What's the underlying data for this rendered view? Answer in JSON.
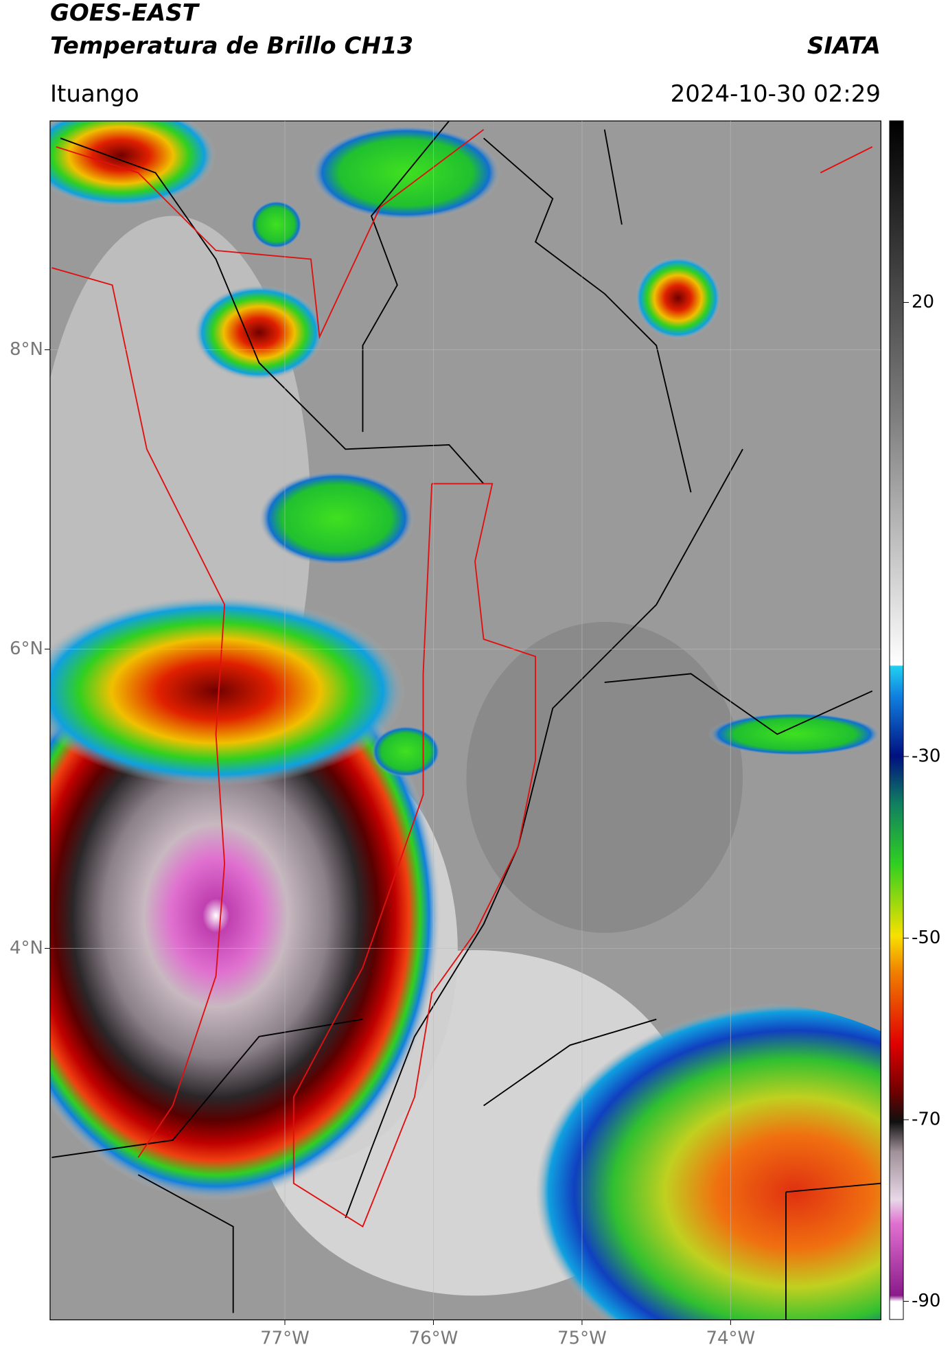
{
  "header": {
    "title": "GOES-EAST",
    "subtitle": "Temperatura de Brillo CH13",
    "source": "SIATA",
    "location": "Ituango",
    "datetime": "2024-10-30 02:29"
  },
  "map": {
    "xlim": [
      -78.58,
      -72.99
    ],
    "ylim": [
      1.52,
      9.53
    ],
    "xticks": [
      {
        "value": -77,
        "label": "77°W"
      },
      {
        "value": -76,
        "label": "76°W"
      },
      {
        "value": -75,
        "label": "75°W"
      },
      {
        "value": -74,
        "label": "74°W"
      }
    ],
    "yticks": [
      {
        "value": 8,
        "label": "8°N"
      },
      {
        "value": 6,
        "label": "6°N"
      },
      {
        "value": 4,
        "label": "4°N"
      }
    ]
  },
  "colorbar": {
    "ylim": [
      -92,
      40
    ],
    "yticks": [
      20,
      -30,
      -50,
      -70,
      -90
    ]
  }
}
